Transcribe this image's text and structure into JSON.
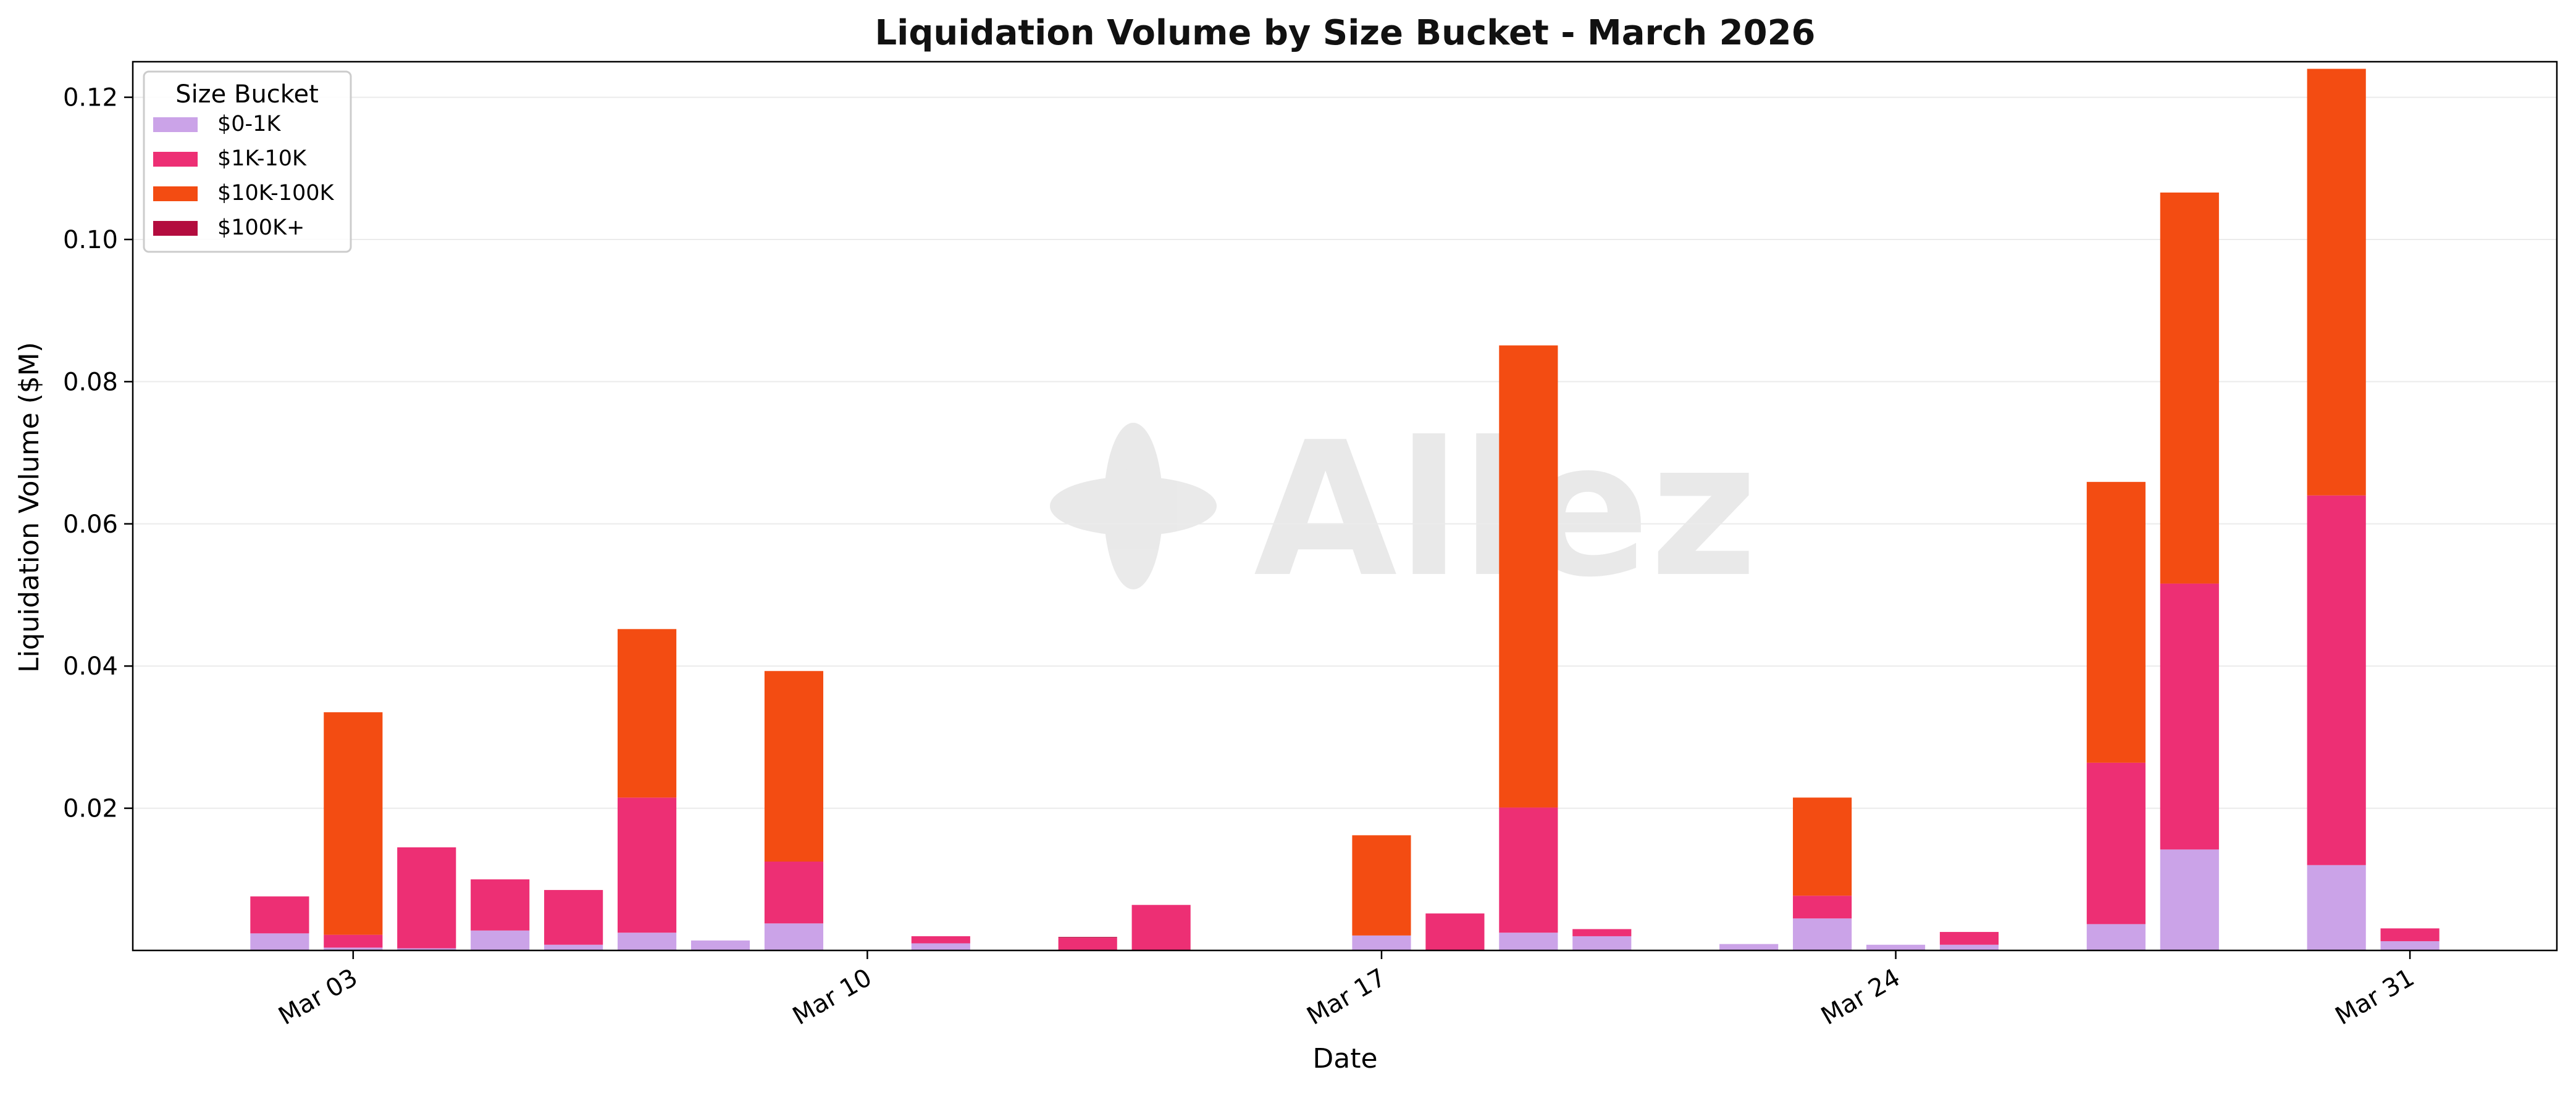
{
  "chart_data": {
    "type": "bar",
    "stacked": true,
    "title": "Liquidation Volume by Size Bucket - March 2026",
    "xlabel": "Date",
    "ylabel": "Liquidation Volume ($M)",
    "ylim": [
      0,
      0.125
    ],
    "yticks": [
      "0.02",
      "0.04",
      "0.06",
      "0.08",
      "0.10",
      "0.12"
    ],
    "xticks": [
      {
        "date": "2026-03-03",
        "label": "Mar 03"
      },
      {
        "date": "2026-03-10",
        "label": "Mar 10"
      },
      {
        "date": "2026-03-17",
        "label": "Mar 17"
      },
      {
        "date": "2026-03-24",
        "label": "Mar 24"
      },
      {
        "date": "2026-03-31",
        "label": "Mar 31"
      }
    ],
    "xrange": [
      "2026-02-28",
      "2026-04-02"
    ],
    "grid": true,
    "legend": {
      "title": "Size Bucket",
      "placement": "top-left"
    },
    "watermark": "Allez",
    "dates": [
      "2026-03-02",
      "2026-03-03",
      "2026-03-04",
      "2026-03-05",
      "2026-03-06",
      "2026-03-07",
      "2026-03-08",
      "2026-03-09",
      "2026-03-10",
      "2026-03-11",
      "2026-03-12",
      "2026-03-13",
      "2026-03-14",
      "2026-03-15",
      "2026-03-16",
      "2026-03-17",
      "2026-03-18",
      "2026-03-19",
      "2026-03-20",
      "2026-03-21",
      "2026-03-22",
      "2026-03-23",
      "2026-03-24",
      "2026-03-25",
      "2026-03-26",
      "2026-03-27",
      "2026-03-28",
      "2026-03-29",
      "2026-03-30",
      "2026-03-31"
    ],
    "series": [
      {
        "name": "$0-1K",
        "color": "#cba3e8",
        "values": [
          0.0024,
          0.0004,
          0.0003,
          0.0028,
          0.0008,
          0.0025,
          0.0014,
          0.0038,
          0,
          0.001,
          0,
          0,
          0,
          0,
          0,
          0.0021,
          0,
          0.0025,
          0.002,
          0,
          0.0009,
          0.0045,
          0.0008,
          0.0008,
          0,
          0.0037,
          0.0142,
          0,
          0.012,
          0.0013
        ]
      },
      {
        "name": "$1K-10K",
        "color": "#ed2f74",
        "values": [
          0.0052,
          0.0018,
          0.0142,
          0.0072,
          0.0077,
          0.019,
          0,
          0.0087,
          0,
          0.001,
          0,
          0.0018,
          0.0064,
          0,
          0,
          0,
          0.0052,
          0.0176,
          0.001,
          0,
          0,
          0.0032,
          0,
          0.0018,
          0,
          0.0227,
          0.0374,
          0,
          0.052,
          0.0018
        ]
      },
      {
        "name": "$10K-100K",
        "color": "#f34c12",
        "values": [
          0,
          0.0313,
          0,
          0,
          0,
          0.0237,
          0,
          0.0268,
          0,
          0,
          0,
          0,
          0,
          0,
          0,
          0.0141,
          0,
          0.065,
          0,
          0,
          0,
          0.0138,
          0,
          0,
          0,
          0.0395,
          0.055,
          0,
          0.06,
          0
        ]
      },
      {
        "name": "$100K+",
        "color": "#b30c3e",
        "values": [
          0,
          0,
          0,
          0,
          0,
          0,
          0,
          0,
          0,
          0,
          0,
          0.0001,
          0,
          0,
          0,
          0,
          0,
          0,
          0,
          0,
          0,
          0,
          0,
          0,
          0,
          0,
          0,
          0,
          0,
          0
        ]
      }
    ]
  }
}
